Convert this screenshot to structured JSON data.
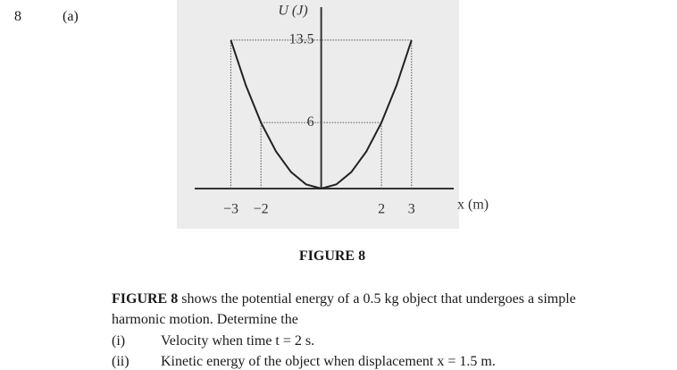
{
  "header": {
    "question_number": "8",
    "part": "(a)"
  },
  "chart_data": {
    "type": "line",
    "caption": "FIGURE 8",
    "y_label": "U (J)",
    "x_label": "x (m)",
    "x": [
      -3,
      -2.5,
      -2,
      -1.5,
      -1,
      -0.5,
      0,
      0.5,
      1,
      1.5,
      2,
      2.5,
      3
    ],
    "series": [
      {
        "color": "#222222",
        "values": [
          13.5,
          9.375,
          6,
          3.375,
          1.5,
          0.375,
          0,
          0.375,
          1.5,
          3.375,
          6,
          9.375,
          13.5
        ]
      }
    ],
    "xlim": [
      -4.2,
      4.4
    ],
    "ylim": [
      0,
      16.5
    ],
    "xticks": [
      {
        "value": -3,
        "label": "−3"
      },
      {
        "value": -2,
        "label": "−2"
      },
      2,
      3
    ],
    "yticks": [
      6,
      13.5
    ],
    "grid": false
  },
  "paragraph": {
    "lead": "FIGURE 8",
    "line1": " shows the potential energy of a 0.5 kg object that undergoes a simple",
    "line2": "harmonic motion. Determine the"
  },
  "items": [
    {
      "label": "(i)",
      "text": "Velocity when time t = 2 s."
    },
    {
      "label": "(ii)",
      "text": "Kinetic energy of the object when displacement x = 1.5 m."
    }
  ]
}
